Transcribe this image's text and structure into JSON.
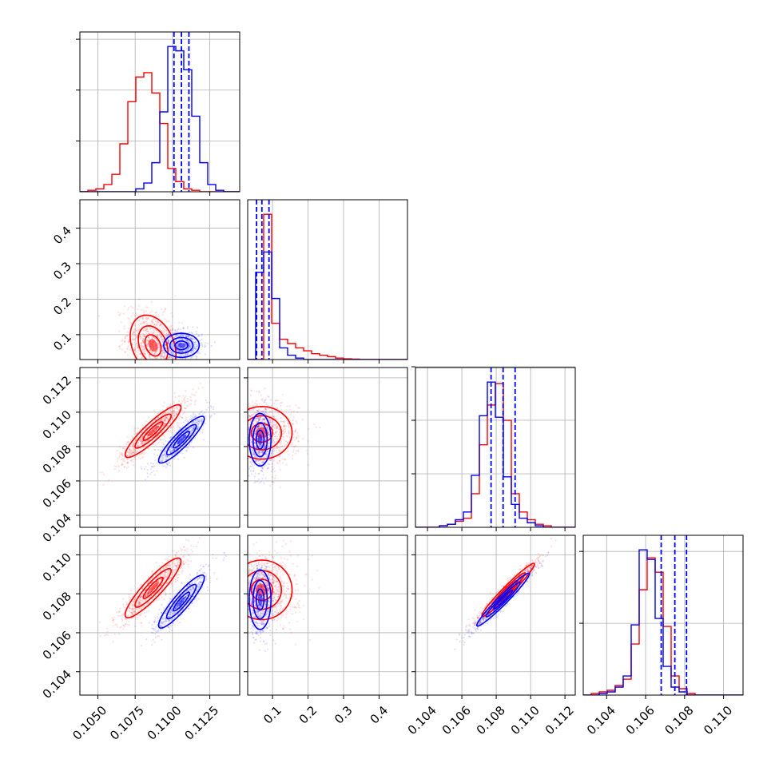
{
  "chart_data": {
    "type": "corner",
    "colors": {
      "red": "#ff0000",
      "blue": "#0000ff",
      "grid": "#b0b0b0"
    },
    "params": [
      {
        "range": [
          0.1038,
          0.1145
        ],
        "ticks": [
          0.105,
          0.1075,
          0.11,
          0.1125
        ],
        "tick_labels": [
          "0.1050",
          "0.1075",
          "0.1100",
          "0.1125"
        ]
      },
      {
        "range": [
          0.03,
          0.48
        ],
        "ticks": [
          0.1,
          0.2,
          0.3,
          0.4
        ],
        "tick_labels": [
          "0.1",
          "0.2",
          "0.3",
          "0.4"
        ]
      },
      {
        "range": [
          0.1033,
          0.1126
        ],
        "ticks": [
          0.104,
          0.106,
          0.108,
          0.11,
          0.112
        ],
        "tick_labels": [
          "0.104",
          "0.106",
          "0.108",
          "0.110",
          "0.112"
        ]
      },
      {
        "range": [
          0.1028,
          0.111
        ],
        "ticks": [
          0.104,
          0.106,
          0.108,
          0.11
        ],
        "tick_labels": [
          "0.104",
          "0.106",
          "0.108",
          "0.110"
        ]
      }
    ],
    "diag_ticks": [
      [
        0.35,
        0.7,
        1.05
      ],
      [],
      [
        0.35,
        0.7,
        1.05
      ],
      [
        0.45,
        0.9
      ]
    ],
    "hist": [
      {
        "red": [
          0,
          0.01,
          0.02,
          0.05,
          0.12,
          0.33,
          0.62,
          0.79,
          0.82,
          0.68,
          0.47,
          0.16,
          0.07,
          0.02,
          0.01,
          0,
          0,
          0,
          0,
          0
        ],
        "blue": [
          0,
          0,
          0,
          0,
          0,
          0,
          0,
          0.02,
          0.06,
          0.2,
          0.55,
          1.0,
          0.97,
          0.84,
          0.52,
          0.2,
          0.05,
          0.01,
          0,
          0
        ]
      },
      {
        "red": [
          0,
          0,
          1.0,
          0.25,
          0.14,
          0.11,
          0.08,
          0.06,
          0.04,
          0.03,
          0.02,
          0.01,
          0.005,
          0.003,
          0,
          0,
          0,
          0,
          0,
          0
        ],
        "blue": [
          0,
          0.6,
          0.74,
          0.42,
          0.08,
          0.03,
          0.01,
          0,
          0,
          0,
          0,
          0,
          0,
          0,
          0,
          0,
          0,
          0,
          0,
          0
        ]
      },
      {
        "red": [
          0,
          0,
          0,
          0.01,
          0.02,
          0.04,
          0.06,
          0.22,
          0.54,
          0.8,
          0.94,
          0.7,
          0.22,
          0.1,
          0.05,
          0.02,
          0.01,
          0,
          0,
          0
        ],
        "blue": [
          0,
          0,
          0,
          0.01,
          0.02,
          0.05,
          0.1,
          0.34,
          0.73,
          0.95,
          0.72,
          0.33,
          0.15,
          0.06,
          0.03,
          0.01,
          0,
          0,
          0,
          0
        ]
      },
      {
        "red": [
          0,
          0.01,
          0.02,
          0.03,
          0.06,
          0.1,
          0.32,
          0.66,
          0.86,
          0.77,
          0.43,
          0.12,
          0.04,
          0.01,
          0,
          0,
          0,
          0,
          0,
          0
        ],
        "blue": [
          0,
          0,
          0.01,
          0.02,
          0.05,
          0.12,
          0.44,
          0.91,
          0.85,
          0.48,
          0.18,
          0.05,
          0.02,
          0,
          0,
          0,
          0,
          0,
          0,
          0
        ]
      }
    ],
    "quantiles": [
      [
        0.1101,
        0.1106,
        0.1111
      ],
      [
        0.055,
        0.07,
        0.09
      ],
      [
        0.1077,
        0.1084,
        0.1091
      ],
      [
        0.1068,
        0.1075,
        0.1081
      ]
    ],
    "pairs": [
      {
        "i": 1,
        "j": 0,
        "red": {
          "mean": [
            0.1087,
            0.07
          ],
          "sd": [
            0.0009,
            0.05
          ],
          "rho": -0.3
        },
        "blue": {
          "mean": [
            0.1106,
            0.07
          ],
          "sd": [
            0.0007,
            0.02
          ],
          "rho": 0.0
        }
      },
      {
        "i": 2,
        "j": 0,
        "red": {
          "mean": [
            0.1087,
            0.1089
          ],
          "sd": [
            0.0011,
            0.0009
          ],
          "rho": 0.9
        },
        "blue": {
          "mean": [
            0.1106,
            0.1084
          ],
          "sd": [
            0.0009,
            0.0008
          ],
          "rho": 0.9
        }
      },
      {
        "i": 2,
        "j": 1,
        "red": {
          "mean": [
            0.07,
            0.1088
          ],
          "sd": [
            0.05,
            0.0009
          ],
          "rho": 0.0
        },
        "blue": {
          "mean": [
            0.065,
            0.1084
          ],
          "sd": [
            0.018,
            0.0009
          ],
          "rho": 0.0
        }
      },
      {
        "i": 3,
        "j": 0,
        "red": {
          "mean": [
            0.1087,
            0.1083
          ],
          "sd": [
            0.0011,
            0.0009
          ],
          "rho": 0.9
        },
        "blue": {
          "mean": [
            0.1106,
            0.1076
          ],
          "sd": [
            0.0009,
            0.0008
          ],
          "rho": 0.9
        }
      },
      {
        "i": 3,
        "j": 1,
        "red": {
          "mean": [
            0.07,
            0.1082
          ],
          "sd": [
            0.05,
            0.0009
          ],
          "rho": 0.0
        },
        "blue": {
          "mean": [
            0.065,
            0.1077
          ],
          "sd": [
            0.018,
            0.0009
          ],
          "rho": 0.0
        }
      },
      {
        "i": 3,
        "j": 2,
        "red": {
          "mean": [
            0.1087,
            0.1082
          ],
          "sd": [
            0.0009,
            0.0008
          ],
          "rho": 0.97
        },
        "blue": {
          "mean": [
            0.1084,
            0.1077
          ],
          "sd": [
            0.0009,
            0.0008
          ],
          "rho": 0.97
        }
      }
    ]
  }
}
